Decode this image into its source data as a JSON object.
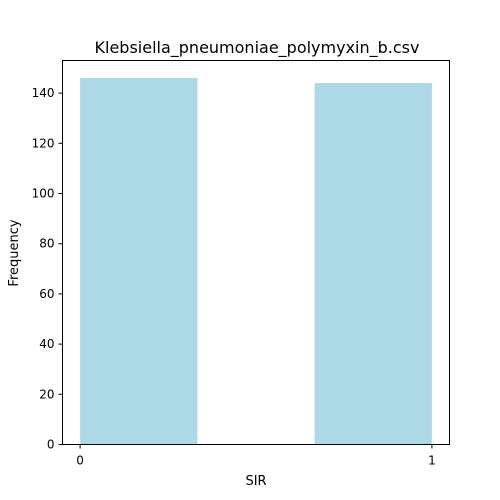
{
  "chart_data": {
    "type": "bar",
    "title": "Klebsiella_pneumoniae_polymyxin_b.csv",
    "xlabel": "SIR",
    "ylabel": "Frequency",
    "bins": [
      {
        "start": 0,
        "end": 0.3333,
        "value": 146
      },
      {
        "start": 0.3333,
        "end": 0.6667,
        "value": 0
      },
      {
        "start": 0.6667,
        "end": 1,
        "value": 144
      }
    ],
    "xlim": [
      -0.05,
      1.05
    ],
    "ylim": [
      0,
      153
    ],
    "xticks": [
      0,
      1
    ],
    "yticks": [
      0,
      20,
      40,
      60,
      80,
      100,
      120,
      140
    ],
    "grid": false,
    "legend": "none",
    "bar_color": "#add8e6"
  }
}
